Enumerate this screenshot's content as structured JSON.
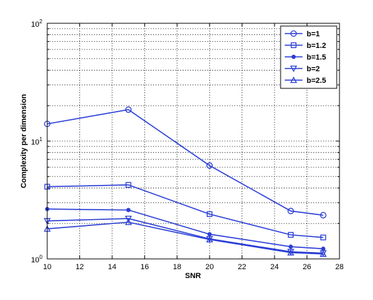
{
  "chart_data": {
    "type": "line",
    "title": "",
    "xlabel": "SNR",
    "ylabel": "Complexity per dimension",
    "xlim": [
      10,
      28
    ],
    "ylim": [
      1,
      100
    ],
    "yscale": "log",
    "grid": true,
    "legend_position": "top-right",
    "x": [
      10,
      15,
      20,
      25,
      27
    ],
    "x_ticks": [
      10,
      12,
      14,
      16,
      18,
      20,
      22,
      24,
      26,
      28
    ],
    "y_ticks": [
      {
        "value": 1,
        "base": "10",
        "exp": "0"
      },
      {
        "value": 10,
        "base": "10",
        "exp": "1"
      },
      {
        "value": 100,
        "base": "10",
        "exp": "2"
      }
    ],
    "line_color": "#2b3fd6",
    "series": [
      {
        "name": "b=1",
        "marker": "circle",
        "values": [
          14.0,
          18.5,
          6.2,
          2.55,
          2.35
        ]
      },
      {
        "name": "b=1.2",
        "marker": "square",
        "values": [
          4.1,
          4.25,
          2.4,
          1.6,
          1.52
        ]
      },
      {
        "name": "b=1.5",
        "marker": "star",
        "values": [
          2.65,
          2.6,
          1.62,
          1.27,
          1.22
        ]
      },
      {
        "name": "b=2",
        "marker": "triangle-down",
        "values": [
          2.1,
          2.2,
          1.48,
          1.15,
          1.12
        ]
      },
      {
        "name": "b=2.5",
        "marker": "triangle-up",
        "values": [
          1.8,
          2.05,
          1.46,
          1.13,
          1.1
        ]
      }
    ]
  }
}
